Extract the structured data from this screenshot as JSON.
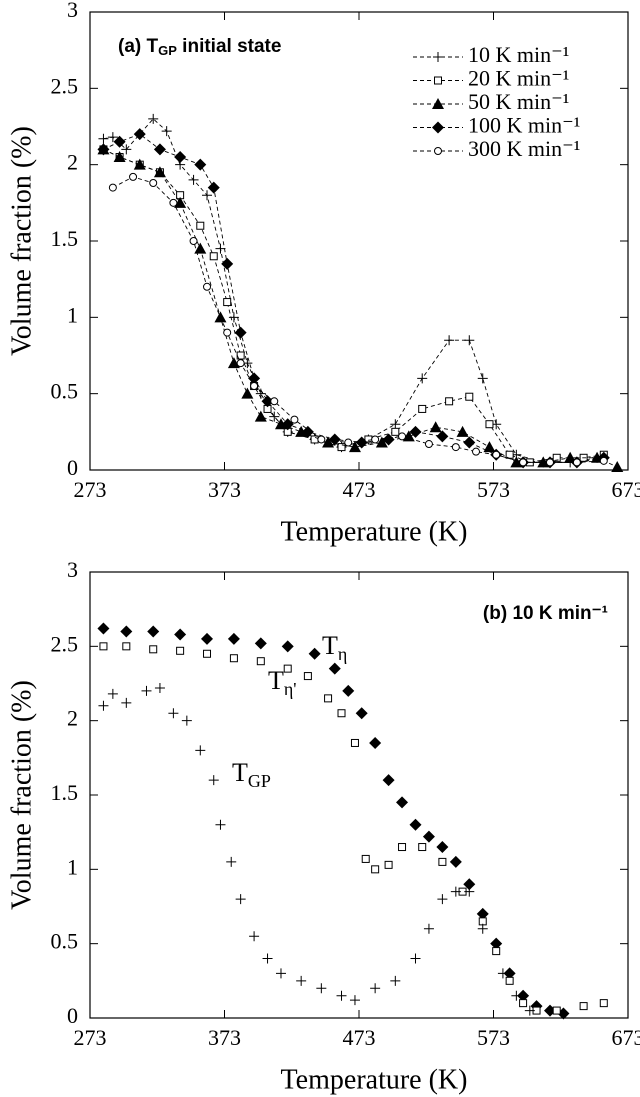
{
  "chart_data": [
    {
      "type": "line",
      "title_parts": [
        "(a) T",
        "GP",
        " initial state"
      ],
      "xlabel": "Temperature (K)",
      "ylabel": "Volume fraction (%)",
      "xlim": [
        273,
        673
      ],
      "ylim": [
        0,
        3
      ],
      "xticks": [
        273,
        373,
        473,
        573,
        673
      ],
      "yticks": [
        0,
        0.5,
        1,
        1.5,
        2,
        2.5,
        3
      ],
      "legend": "upper right",
      "series": [
        {
          "name": "10  K min⁻¹",
          "color": "#000000",
          "marker": "plus",
          "x": [
            283,
            290,
            300,
            310,
            320,
            330,
            340,
            350,
            360,
            370,
            380,
            390,
            400,
            410,
            420,
            440,
            460,
            480,
            500,
            520,
            540,
            555,
            565,
            575,
            590,
            610,
            630,
            650
          ],
          "values": [
            2.17,
            2.18,
            2.1,
            2.2,
            2.3,
            2.22,
            2.0,
            1.9,
            1.8,
            1.45,
            1.0,
            0.7,
            0.5,
            0.35,
            0.25,
            0.2,
            0.15,
            0.2,
            0.3,
            0.6,
            0.85,
            0.85,
            0.6,
            0.3,
            0.1,
            0.05,
            0.05,
            0.08
          ]
        },
        {
          "name": "20  K min⁻¹",
          "color": "#000000",
          "marker": "square",
          "x": [
            283,
            295,
            310,
            325,
            340,
            355,
            365,
            375,
            385,
            395,
            405,
            420,
            440,
            460,
            480,
            500,
            520,
            540,
            555,
            570,
            585,
            600,
            620,
            640,
            655
          ],
          "values": [
            2.1,
            2.05,
            2.0,
            1.95,
            1.8,
            1.6,
            1.4,
            1.1,
            0.75,
            0.55,
            0.4,
            0.25,
            0.2,
            0.15,
            0.2,
            0.25,
            0.4,
            0.45,
            0.48,
            0.3,
            0.1,
            0.05,
            0.08,
            0.08,
            0.1
          ]
        },
        {
          "name": "50  K min⁻¹",
          "color": "#000000",
          "marker": "triangle",
          "x": [
            283,
            295,
            310,
            325,
            340,
            355,
            370,
            380,
            390,
            400,
            415,
            430,
            450,
            470,
            490,
            510,
            530,
            550,
            570,
            590,
            610,
            630,
            650,
            665
          ],
          "values": [
            2.1,
            2.05,
            2.0,
            1.95,
            1.75,
            1.45,
            1.0,
            0.7,
            0.5,
            0.35,
            0.3,
            0.25,
            0.18,
            0.15,
            0.18,
            0.22,
            0.28,
            0.25,
            0.15,
            0.05,
            0.05,
            0.08,
            0.08,
            0.02
          ]
        },
        {
          "name": "100 K min⁻¹",
          "color": "#000000",
          "marker": "diamond",
          "x": [
            283,
            295,
            310,
            325,
            340,
            355,
            365,
            375,
            385,
            395,
            405,
            420,
            435,
            455,
            475,
            495,
            515,
            535,
            555,
            575,
            595,
            615,
            635,
            655
          ],
          "values": [
            2.1,
            2.15,
            2.2,
            2.1,
            2.05,
            2.0,
            1.85,
            1.35,
            0.9,
            0.6,
            0.45,
            0.3,
            0.25,
            0.2,
            0.18,
            0.2,
            0.25,
            0.22,
            0.18,
            0.1,
            0.05,
            0.05,
            0.05,
            0.08
          ]
        },
        {
          "name": "300 K min⁻¹",
          "color": "#000000",
          "marker": "circle",
          "x": [
            290,
            305,
            320,
            335,
            350,
            360,
            375,
            385,
            395,
            410,
            425,
            445,
            465,
            485,
            505,
            525,
            545,
            560,
            575,
            595,
            615,
            635,
            655
          ],
          "values": [
            1.85,
            1.92,
            1.88,
            1.75,
            1.5,
            1.2,
            0.9,
            0.7,
            0.55,
            0.45,
            0.33,
            0.2,
            0.18,
            0.2,
            0.22,
            0.17,
            0.15,
            0.12,
            0.1,
            0.05,
            0.05,
            0.05,
            0.06
          ]
        }
      ]
    },
    {
      "type": "scatter",
      "title": "(b) 10 K min⁻¹",
      "xlabel": "Temperature (K)",
      "ylabel": "Volume fraction (%)",
      "xlim": [
        273,
        673
      ],
      "ylim": [
        0,
        3
      ],
      "xticks": [
        273,
        373,
        473,
        573,
        673
      ],
      "yticks": [
        0,
        0.5,
        1,
        1.5,
        2,
        2.5,
        3
      ],
      "annotations": [
        {
          "text": "T",
          "sub": "η"
        },
        {
          "text": "T",
          "sub": "η'"
        },
        {
          "text": "T",
          "sub": "GP"
        }
      ],
      "series": [
        {
          "color": "#000000",
          "marker": "diamond",
          "x": [
            283,
            300,
            320,
            340,
            360,
            380,
            400,
            420,
            440,
            455,
            465,
            475,
            485,
            495,
            505,
            515,
            525,
            535,
            545,
            555,
            565,
            575,
            585,
            595,
            605,
            615,
            625
          ],
          "values": [
            2.62,
            2.6,
            2.6,
            2.58,
            2.55,
            2.55,
            2.52,
            2.5,
            2.45,
            2.35,
            2.2,
            2.05,
            1.85,
            1.6,
            1.45,
            1.3,
            1.22,
            1.15,
            1.05,
            0.9,
            0.7,
            0.5,
            0.3,
            0.15,
            0.08,
            0.05,
            0.03
          ]
        },
        {
          "color": "#000000",
          "marker": "square",
          "x": [
            283,
            300,
            320,
            340,
            360,
            380,
            400,
            420,
            435,
            450,
            460,
            470,
            478,
            485,
            495,
            505,
            520,
            535,
            550,
            565,
            575,
            585,
            595,
            605,
            620,
            640,
            655
          ],
          "values": [
            2.5,
            2.5,
            2.48,
            2.47,
            2.45,
            2.42,
            2.4,
            2.35,
            2.3,
            2.15,
            2.05,
            1.85,
            1.07,
            1.0,
            1.03,
            1.15,
            1.15,
            1.05,
            0.85,
            0.65,
            0.45,
            0.25,
            0.1,
            0.05,
            0.05,
            0.08,
            0.1
          ]
        },
        {
          "color": "#000000",
          "marker": "plus",
          "x": [
            283,
            290,
            300,
            315,
            325,
            335,
            345,
            355,
            365,
            370,
            378,
            385,
            395,
            405,
            415,
            430,
            445,
            460,
            470,
            485,
            500,
            515,
            525,
            535,
            545,
            555,
            565,
            580,
            590,
            600
          ],
          "values": [
            2.1,
            2.18,
            2.12,
            2.2,
            2.22,
            2.05,
            2.0,
            1.8,
            1.6,
            1.3,
            1.05,
            0.8,
            0.55,
            0.4,
            0.3,
            0.25,
            0.2,
            0.15,
            0.12,
            0.2,
            0.25,
            0.4,
            0.6,
            0.8,
            0.85,
            0.85,
            0.6,
            0.3,
            0.15,
            0.05
          ]
        }
      ]
    }
  ]
}
